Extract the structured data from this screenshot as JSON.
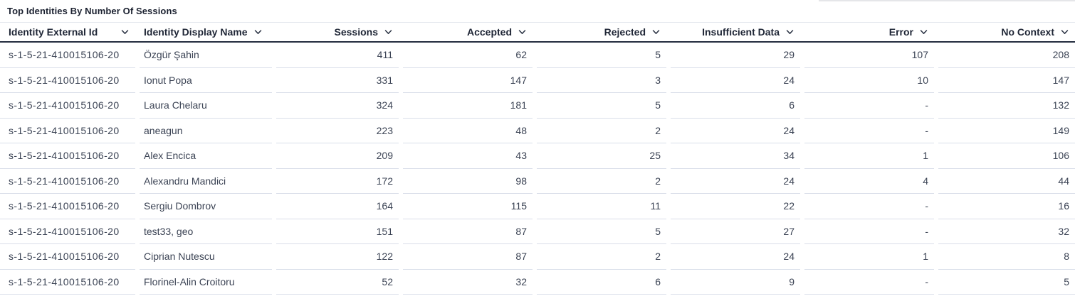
{
  "title": "Top Identities By Number Of Sessions",
  "colors": {
    "title_text": "#1b2130",
    "header_text": "#1f2636",
    "body_text": "#3b4354",
    "header_border": "#242e3f",
    "row_separator": "#d9dee9",
    "top_divider": "#e3e7ee"
  },
  "table": {
    "sort_icon": "chevron-down-icon",
    "columns": [
      {
        "key": "identity-external-id",
        "label": "Identity External Id",
        "align": "left"
      },
      {
        "key": "identity-display-name",
        "label": "Identity Display Name",
        "align": "left"
      },
      {
        "key": "sessions",
        "label": "Sessions",
        "align": "right"
      },
      {
        "key": "accepted",
        "label": "Accepted",
        "align": "right"
      },
      {
        "key": "rejected",
        "label": "Rejected",
        "align": "right"
      },
      {
        "key": "insufficient-data",
        "label": "Insufficient Data",
        "align": "right"
      },
      {
        "key": "error",
        "label": "Error",
        "align": "right"
      },
      {
        "key": "no-context",
        "label": "No Context",
        "align": "right"
      }
    ],
    "rows": [
      [
        "s-1-5-21-410015106-20",
        "Özgür Şahin",
        "411",
        "62",
        "5",
        "29",
        "107",
        "208"
      ],
      [
        "s-1-5-21-410015106-20",
        "Ionut Popa",
        "331",
        "147",
        "3",
        "24",
        "10",
        "147"
      ],
      [
        "s-1-5-21-410015106-20",
        "Laura Chelaru",
        "324",
        "181",
        "5",
        "6",
        "-",
        "132"
      ],
      [
        "s-1-5-21-410015106-20",
        "aneagun",
        "223",
        "48",
        "2",
        "24",
        "-",
        "149"
      ],
      [
        "s-1-5-21-410015106-20",
        "Alex Encica",
        "209",
        "43",
        "25",
        "34",
        "1",
        "106"
      ],
      [
        "s-1-5-21-410015106-20",
        "Alexandru Mandici",
        "172",
        "98",
        "2",
        "24",
        "4",
        "44"
      ],
      [
        "s-1-5-21-410015106-20",
        "Sergiu Dombrov",
        "164",
        "115",
        "11",
        "22",
        "-",
        "16"
      ],
      [
        "s-1-5-21-410015106-20",
        "test33, geo",
        "151",
        "87",
        "5",
        "27",
        "-",
        "32"
      ],
      [
        "s-1-5-21-410015106-20",
        "Ciprian Nutescu",
        "122",
        "87",
        "2",
        "24",
        "1",
        "8"
      ],
      [
        "s-1-5-21-410015106-20",
        "Florinel-Alin Croitoru",
        "52",
        "32",
        "6",
        "9",
        "-",
        "5"
      ]
    ]
  }
}
